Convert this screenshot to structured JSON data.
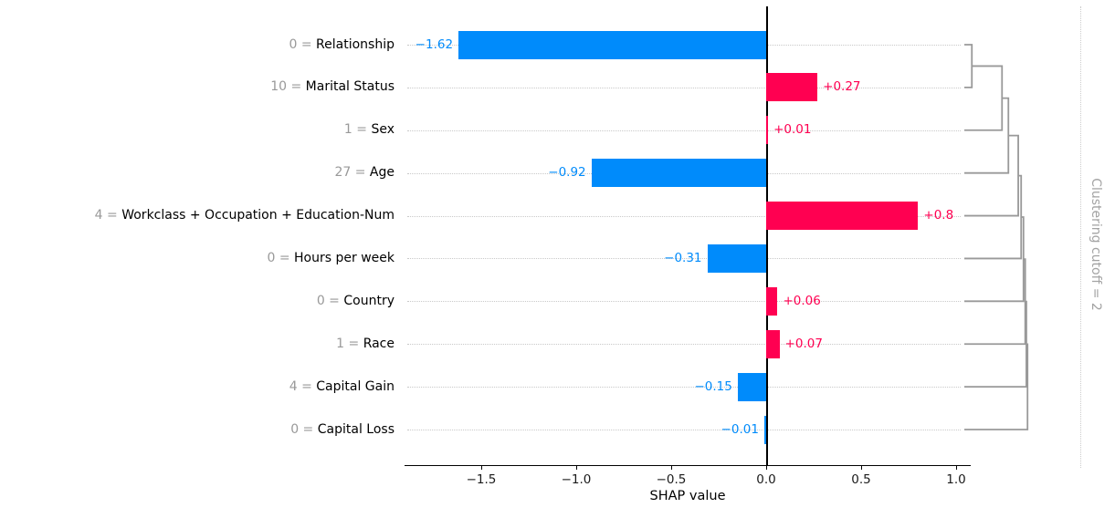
{
  "chart_data": {
    "type": "bar",
    "orientation": "horizontal",
    "title": "",
    "xlabel": "SHAP value",
    "xlim": [
      -1.9,
      1.08
    ],
    "xticks": [
      -1.5,
      -1.0,
      -0.5,
      0.0,
      0.5,
      1.0
    ],
    "xtick_labels": [
      "−1.5",
      "−1.0",
      "−0.5",
      "0.0",
      "0.5",
      "1.0"
    ],
    "grid": "dotted horizontal leader per row",
    "legend": "none",
    "baseline": 0,
    "colors": {
      "positive": "#ff0051",
      "negative": "#008bfb",
      "axis": "#000000",
      "muted_text": "#999999",
      "gridline": "#c9c9c9",
      "dendrogram": "#999999"
    },
    "categories": [
      "0 = Relationship",
      "10 = Marital Status",
      "1 = Sex",
      "27 = Age",
      "4 = Workclass + Occupation + Education-Num",
      "0 = Hours per week",
      "0 = Country",
      "1 = Race",
      "4 = Capital Gain",
      "0 = Capital Loss"
    ],
    "rows": [
      {
        "feature_value": "0",
        "operator": "=",
        "feature": "Relationship",
        "shap": -1.62,
        "label": "−1.62"
      },
      {
        "feature_value": "10",
        "operator": "=",
        "feature": "Marital Status",
        "shap": 0.27,
        "label": "+0.27"
      },
      {
        "feature_value": "1",
        "operator": "=",
        "feature": "Sex",
        "shap": 0.01,
        "label": "+0.01"
      },
      {
        "feature_value": "27",
        "operator": "=",
        "feature": "Age",
        "shap": -0.92,
        "label": "−0.92"
      },
      {
        "feature_value": "4",
        "operator": "=",
        "feature": "Workclass + Occupation + Education-Num",
        "shap": 0.8,
        "label": "+0.8"
      },
      {
        "feature_value": "0",
        "operator": "=",
        "feature": "Hours per week",
        "shap": -0.31,
        "label": "−0.31"
      },
      {
        "feature_value": "0",
        "operator": "=",
        "feature": "Country",
        "shap": 0.06,
        "label": "+0.06"
      },
      {
        "feature_value": "1",
        "operator": "=",
        "feature": "Race",
        "shap": 0.07,
        "label": "+0.07"
      },
      {
        "feature_value": "4",
        "operator": "=",
        "feature": "Capital Gain",
        "shap": -0.15,
        "label": "−0.15"
      },
      {
        "feature_value": "0",
        "operator": "=",
        "feature": "Capital Loss",
        "shap": -0.01,
        "label": "−0.01"
      }
    ],
    "clustering": {
      "cutoff": 2,
      "cutoff_label": "Clustering cutoff = 2",
      "structure": "chain: each successive row merges into the cluster above it",
      "merge_distances": [
        0.13,
        0.65,
        0.76,
        0.93,
        0.98,
        1.02,
        1.05,
        1.07,
        1.09
      ]
    }
  }
}
